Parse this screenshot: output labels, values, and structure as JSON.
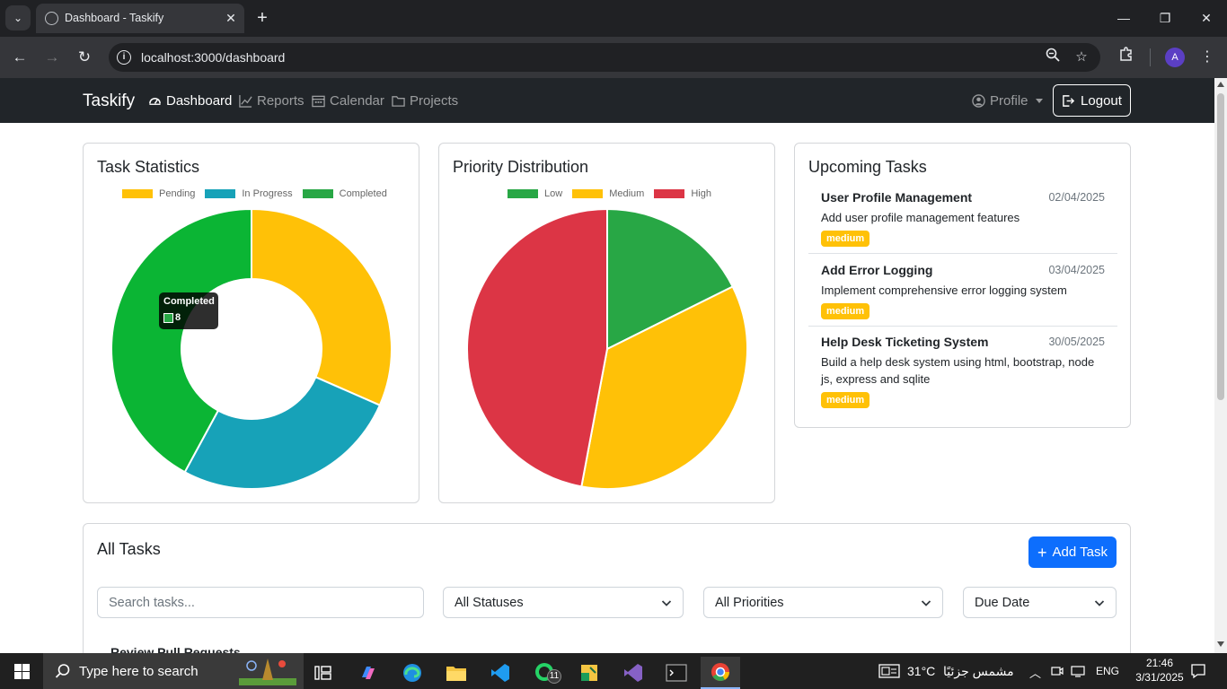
{
  "browser": {
    "tab_title": "Dashboard - Taskify",
    "url": "localhost:3000/dashboard",
    "profile_initial": "A"
  },
  "nav": {
    "brand": "Taskify",
    "links": [
      {
        "label": "Dashboard",
        "icon": "gauge-icon",
        "active": true
      },
      {
        "label": "Reports",
        "icon": "line-chart-icon",
        "active": false
      },
      {
        "label": "Calendar",
        "icon": "calendar-icon",
        "active": false
      },
      {
        "label": "Projects",
        "icon": "folder-icon",
        "active": false
      }
    ],
    "profile": "Profile",
    "logout": "Logout"
  },
  "task_stats": {
    "title": "Task Statistics",
    "tooltip_label": "Completed",
    "tooltip_value": "8"
  },
  "priority": {
    "title": "Priority Distribution"
  },
  "chart_data": [
    {
      "type": "pie",
      "variant": "doughnut",
      "title": "Task Statistics",
      "categories": [
        "Pending",
        "In Progress",
        "Completed"
      ],
      "values": [
        6,
        5,
        8
      ],
      "colors": [
        "#ffc107",
        "#17a2b8",
        "#0bb534"
      ],
      "legend_position": "top"
    },
    {
      "type": "pie",
      "title": "Priority Distribution",
      "categories": [
        "Low",
        "Medium",
        "High"
      ],
      "values": [
        3,
        6,
        8
      ],
      "colors": [
        "#28a745",
        "#ffc107",
        "#dc3545"
      ],
      "legend_position": "top"
    }
  ],
  "upcoming": {
    "title": "Upcoming Tasks",
    "tasks": [
      {
        "name": "User Profile Management",
        "date": "02/04/2025",
        "desc": "Add user profile management features",
        "priority": "medium"
      },
      {
        "name": "Add Error Logging",
        "date": "03/04/2025",
        "desc": "Implement comprehensive error logging system",
        "priority": "medium"
      },
      {
        "name": "Help Desk Ticketing System",
        "date": "30/05/2025",
        "desc": "Build a help desk system using html, bootstrap, node js, express and sqlite",
        "priority": "medium"
      }
    ]
  },
  "all_tasks": {
    "title": "All Tasks",
    "add_button": "Add Task",
    "search_placeholder": "Search tasks...",
    "status_filter": "All Statuses",
    "priority_filter": "All Priorities",
    "sort": "Due Date",
    "first_row": "Review Pull Requests"
  },
  "taskbar": {
    "search": "Type here to search",
    "whatsapp_badge": "11",
    "weather": "31°C",
    "weather_desc": "مشمس جزئيًا",
    "lang": "ENG",
    "time": "21:46",
    "date": "3/31/2025"
  }
}
